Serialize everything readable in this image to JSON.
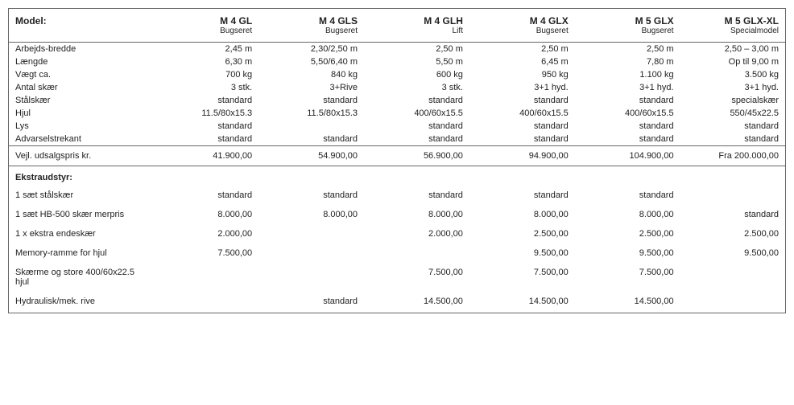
{
  "header": {
    "label": "Model:",
    "models": [
      {
        "name": "M 4 GL",
        "sub": "Bugseret"
      },
      {
        "name": "M 4 GLS",
        "sub": "Bugseret"
      },
      {
        "name": "M 4 GLH",
        "sub": "Lift"
      },
      {
        "name": "M 4 GLX",
        "sub": "Bugseret"
      },
      {
        "name": "M 5 GLX",
        "sub": "Bugseret"
      },
      {
        "name": "M 5 GLX-XL",
        "sub": "Specialmodel"
      }
    ]
  },
  "specs": [
    {
      "label": "Arbejds-bredde",
      "v": [
        "2,45 m",
        "2,30/2,50 m",
        "2,50 m",
        "2,50 m",
        "2,50 m",
        "2,50 – 3,00 m"
      ]
    },
    {
      "label": "Længde",
      "v": [
        "6,30 m",
        "5,50/6,40 m",
        "5,50 m",
        "6,45 m",
        "7,80 m",
        "Op til 9,00 m"
      ]
    },
    {
      "label": "Vægt ca.",
      "v": [
        "700 kg",
        "840 kg",
        "600 kg",
        "950 kg",
        "1.100 kg",
        "3.500 kg"
      ]
    },
    {
      "label": "Antal skær",
      "v": [
        "3 stk.",
        "3+Rive",
        "3 stk.",
        "3+1 hyd.",
        "3+1 hyd.",
        "3+1 hyd."
      ]
    },
    {
      "label": "Stålskær",
      "v": [
        "standard",
        "standard",
        "standard",
        "standard",
        "standard",
        "specialskær"
      ]
    },
    {
      "label": "Hjul",
      "v": [
        "11.5/80x15.3",
        "11.5/80x15.3",
        "400/60x15.5",
        "400/60x15.5",
        "400/60x15.5",
        "550/45x22.5"
      ]
    },
    {
      "label": "Lys",
      "v": [
        "standard",
        "",
        "standard",
        "standard",
        "standard",
        "standard"
      ]
    },
    {
      "label": "Advarselstrekant",
      "v": [
        "standard",
        "standard",
        "standard",
        "standard",
        "standard",
        "standard"
      ]
    }
  ],
  "price": {
    "label": "Vejl. udsalgspris kr.",
    "v": [
      "41.900,00",
      "54.900,00",
      "56.900,00",
      "94.900,00",
      "104.900,00",
      "Fra 200.000,00"
    ]
  },
  "extras": {
    "label": "Ekstraudstyr:",
    "rows": [
      {
        "label": "1 sæt stålskær",
        "v": [
          "standard",
          "standard",
          "standard",
          "standard",
          "standard",
          ""
        ]
      },
      {
        "label": "1 sæt HB-500 skær merpris",
        "v": [
          "8.000,00",
          "8.000,00",
          "8.000,00",
          "8.000,00",
          "8.000,00",
          "standard"
        ]
      },
      {
        "label": "1 x ekstra endeskær",
        "v": [
          "2.000,00",
          "",
          "2.000,00",
          "2.500,00",
          "2.500,00",
          "2.500,00"
        ]
      },
      {
        "label": "Memory-ramme for hjul",
        "v": [
          "7.500,00",
          "",
          "",
          "9.500,00",
          "9.500,00",
          "9.500,00"
        ]
      },
      {
        "label": "Skærme og store 400/60x22.5 hjul",
        "v": [
          "",
          "",
          "7.500,00",
          "7.500,00",
          "7.500,00",
          ""
        ]
      },
      {
        "label": "Hydraulisk/mek. rive",
        "v": [
          "",
          "standard",
          "14.500,00",
          "14.500,00",
          "14.500,00",
          ""
        ]
      }
    ]
  }
}
